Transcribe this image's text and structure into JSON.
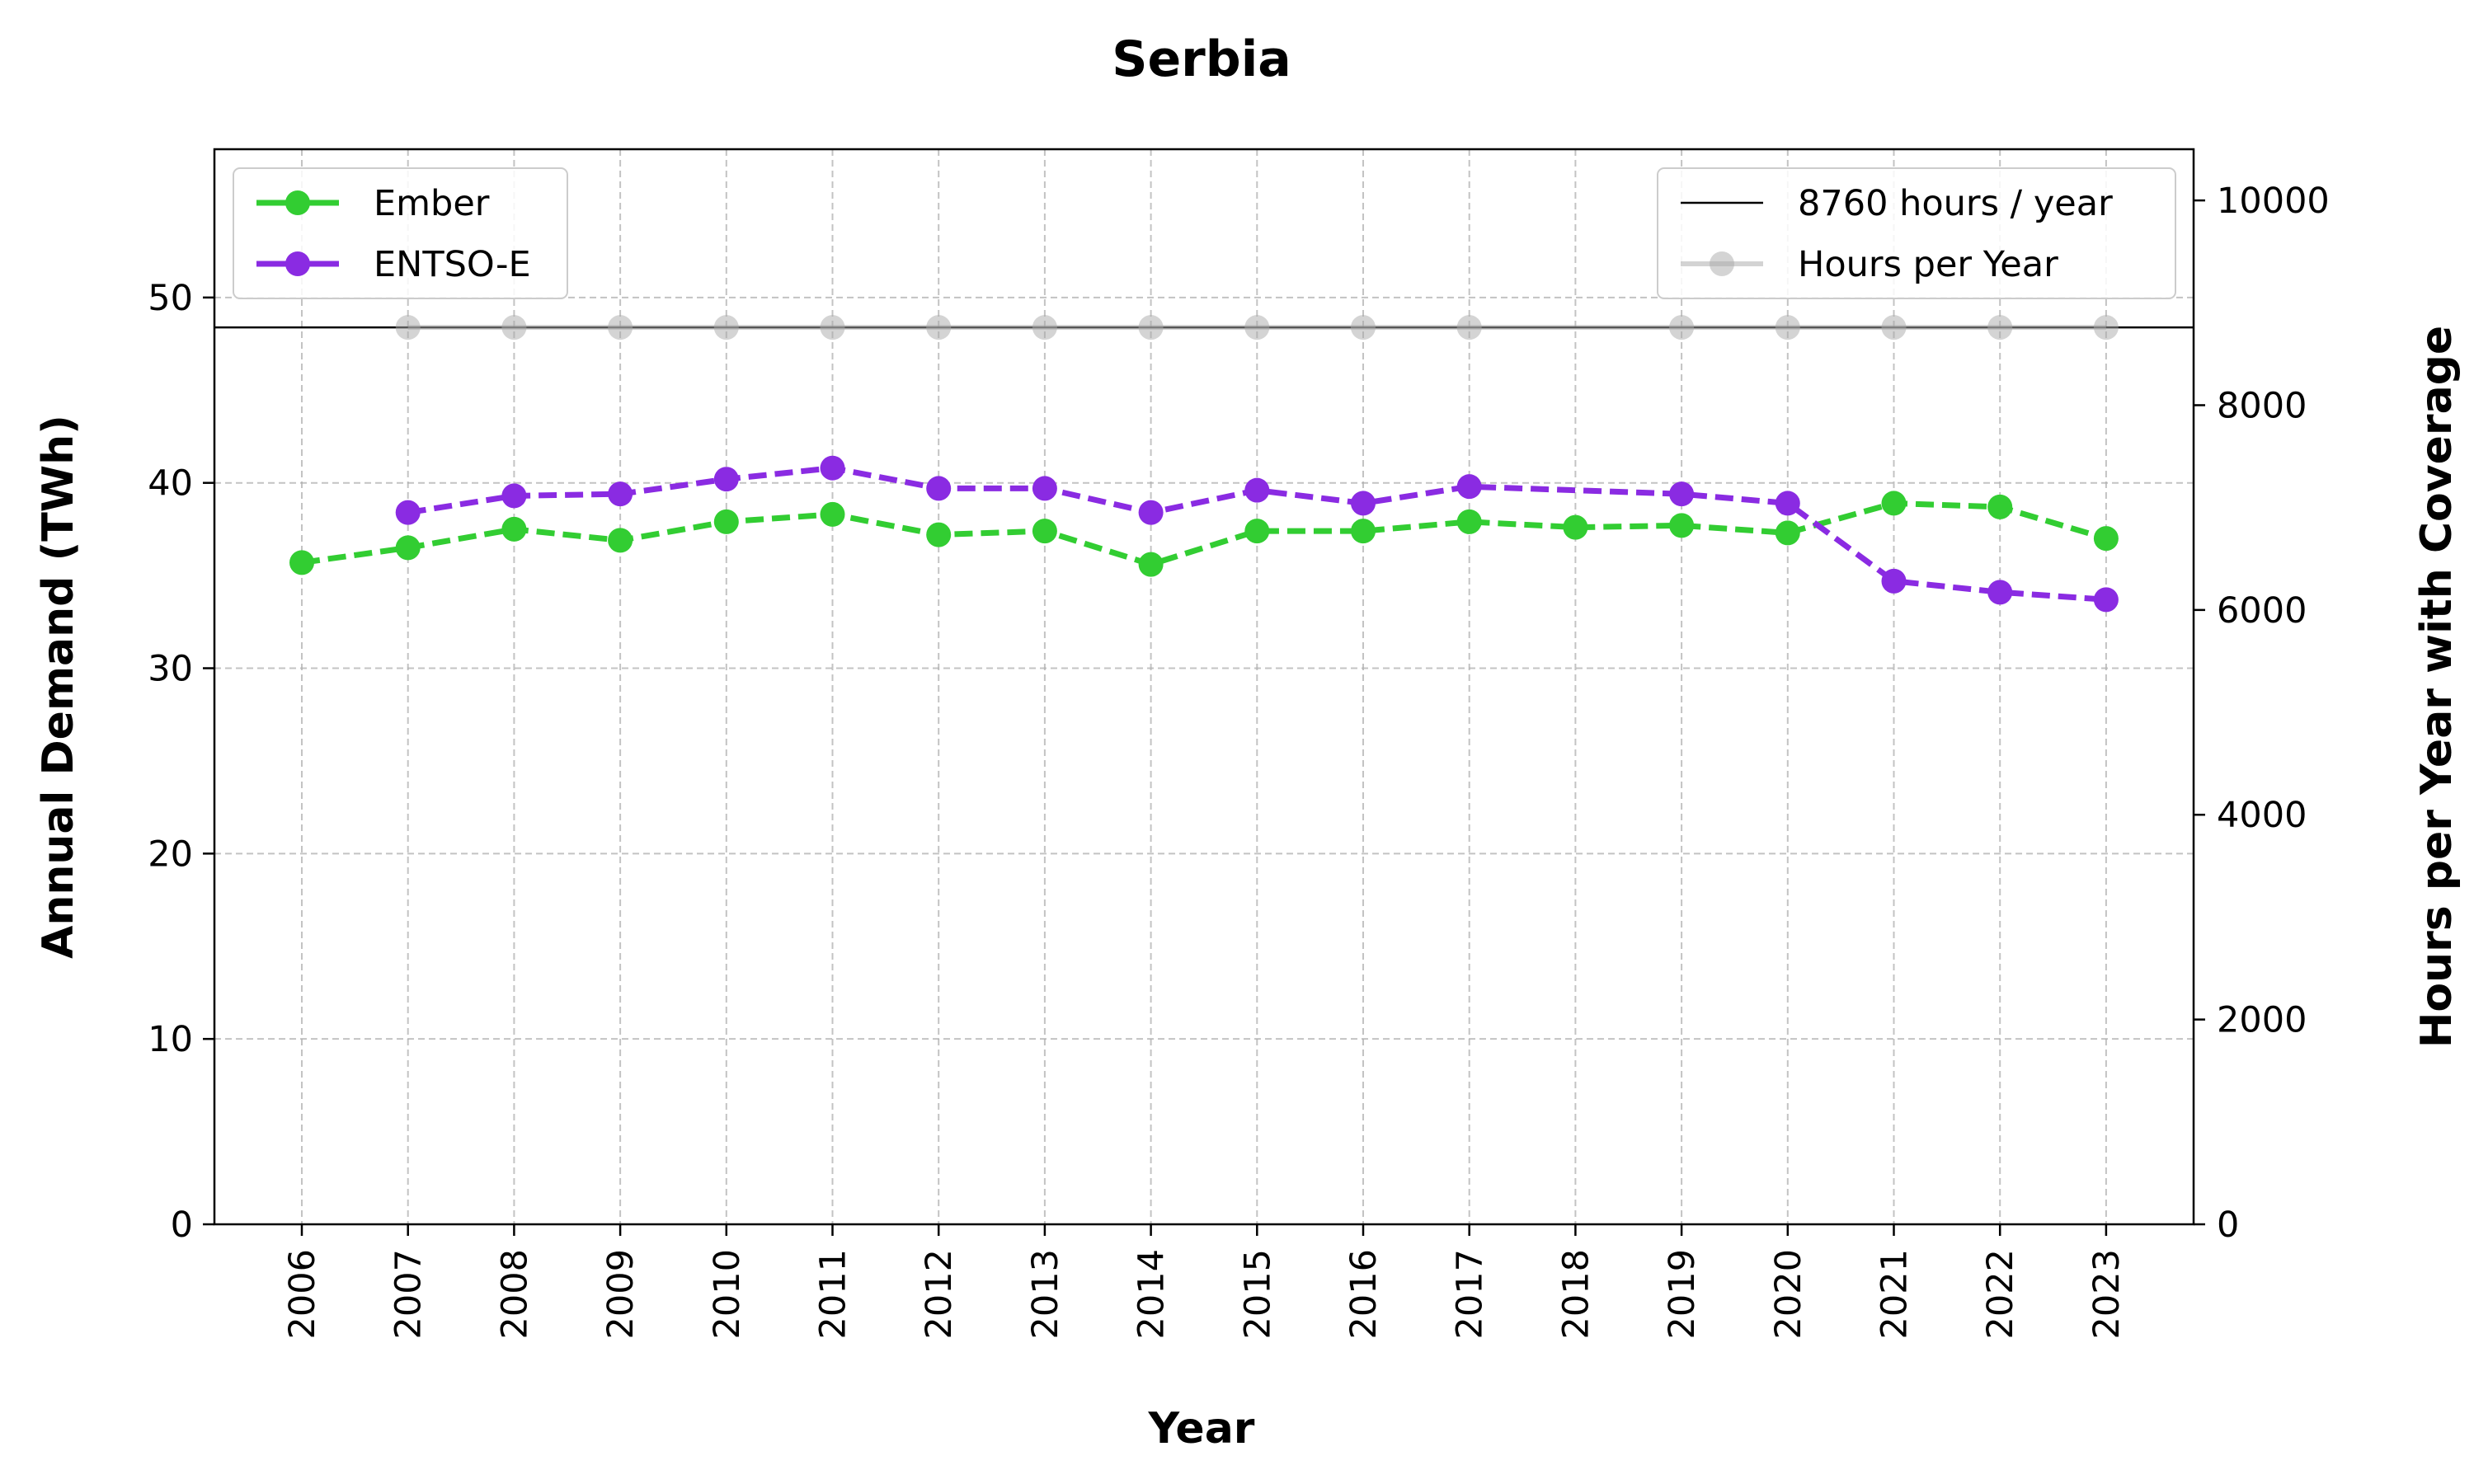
{
  "chart_data": {
    "type": "line",
    "title": "Serbia",
    "xlabel": "Year",
    "ylabel": "Annual Demand (TWh)",
    "y2label": "Hours per Year with Coverage",
    "x": [
      2006,
      2007,
      2008,
      2009,
      2010,
      2011,
      2012,
      2013,
      2014,
      2015,
      2016,
      2017,
      2018,
      2019,
      2020,
      2021,
      2022,
      2023
    ],
    "x_tick_labels": [
      "2006",
      "2007",
      "2008",
      "2009",
      "2010",
      "2011",
      "2012",
      "2013",
      "2014",
      "2015",
      "2016",
      "2017",
      "2018",
      "2019",
      "2020",
      "2021",
      "2022",
      "2023"
    ],
    "ylim": [
      0,
      58
    ],
    "y2lim": [
      0,
      10500
    ],
    "y_ticks": [
      0,
      10,
      20,
      30,
      40,
      50
    ],
    "y2_ticks": [
      0,
      2000,
      4000,
      6000,
      8000,
      10000
    ],
    "grid": true,
    "series": [
      {
        "name": "Ember",
        "axis": "left",
        "color": "#32cd32",
        "style": "dashed",
        "values": [
          35.7,
          36.5,
          37.5,
          36.9,
          37.9,
          38.3,
          37.2,
          37.4,
          35.6,
          37.4,
          37.4,
          37.9,
          37.6,
          37.7,
          37.3,
          38.9,
          38.7,
          37.0
        ]
      },
      {
        "name": "ENTSO-E",
        "axis": "left",
        "color": "#8a2be2",
        "style": "dashed",
        "values": [
          null,
          38.4,
          39.3,
          39.4,
          40.2,
          40.8,
          39.7,
          39.7,
          38.4,
          39.6,
          38.9,
          39.8,
          null,
          39.4,
          38.9,
          34.7,
          34.1,
          33.7
        ]
      },
      {
        "name": "Hours per Year",
        "axis": "right",
        "color": "#a9a9a9",
        "style": "solid",
        "values": [
          null,
          8760,
          8760,
          8760,
          8760,
          8760,
          8760,
          8760,
          8760,
          8760,
          8760,
          8760,
          null,
          8760,
          8760,
          8760,
          8760,
          8760
        ]
      }
    ],
    "reference_line": {
      "name": "8760 hours / year",
      "axis": "right",
      "value": 8760,
      "color": "#000000"
    },
    "legend_left": {
      "placement": "upper-left",
      "entries": [
        "Ember",
        "ENTSO-E"
      ]
    },
    "legend_right": {
      "placement": "upper-right",
      "entries": [
        "8760 hours / year",
        "Hours per Year"
      ]
    }
  }
}
